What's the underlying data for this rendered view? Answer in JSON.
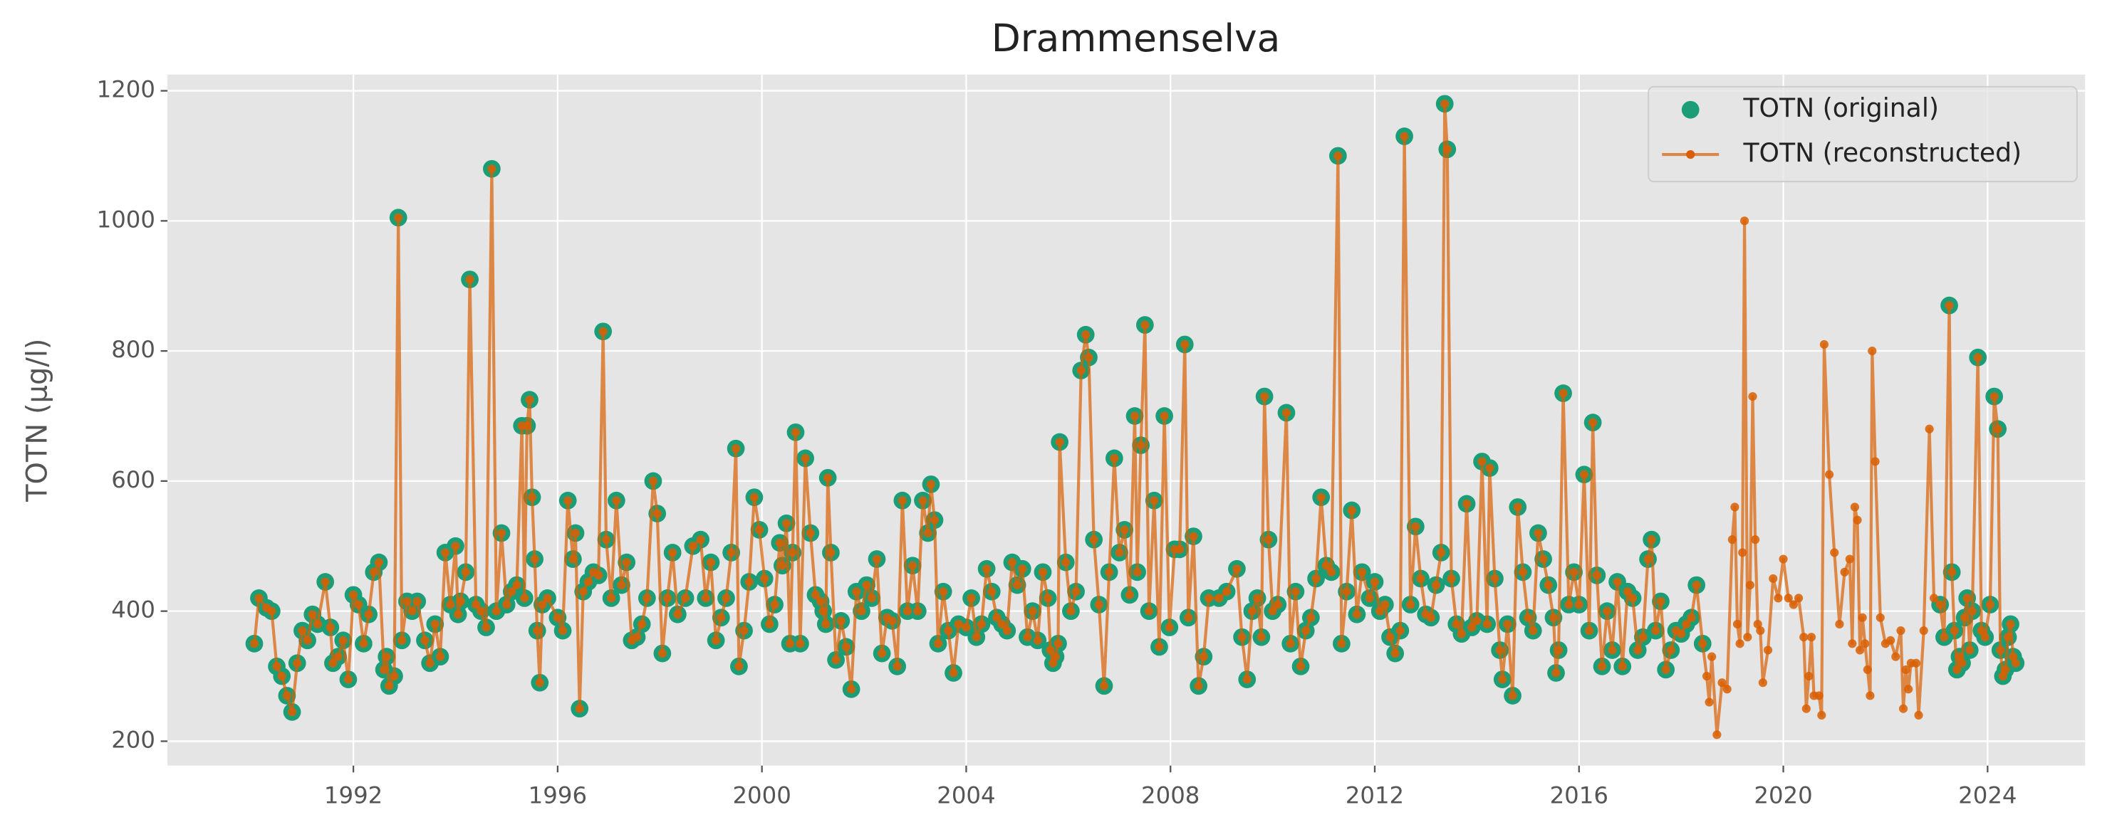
{
  "chart_data": {
    "type": "line",
    "title": "Drammenselva",
    "ylabel": "TOTN (µg/l)",
    "xlim": [
      1988.36,
      2025.91
    ],
    "xticks": [
      1992,
      1996,
      2000,
      2004,
      2008,
      2012,
      2016,
      2020,
      2024
    ],
    "ylim": [
      162.5,
      1225
    ],
    "yticks": [
      200,
      400,
      600,
      800,
      1000,
      1200
    ],
    "grid": true,
    "legend": "upper right",
    "x": [
      1990.06,
      1990.15,
      1990.3,
      1990.4,
      1990.5,
      1990.6,
      1990.7,
      1990.8,
      1990.9,
      1991.0,
      1991.1,
      1991.2,
      1991.3,
      1991.45,
      1991.55,
      1991.6,
      1991.7,
      1991.8,
      1991.9,
      1992.0,
      1992.1,
      1992.2,
      1992.3,
      1992.4,
      1992.5,
      1992.6,
      1992.65,
      1992.7,
      1992.8,
      1992.88,
      1992.95,
      1993.05,
      1993.15,
      1993.25,
      1993.4,
      1993.5,
      1993.6,
      1993.7,
      1993.8,
      1993.9,
      1994.0,
      1994.05,
      1994.1,
      1994.2,
      1994.28,
      1994.4,
      1994.5,
      1994.6,
      1994.71,
      1994.8,
      1994.9,
      1995.0,
      1995.1,
      1995.2,
      1995.3,
      1995.35,
      1995.4,
      1995.45,
      1995.5,
      1995.55,
      1995.6,
      1995.65,
      1995.7,
      1995.8,
      1996.0,
      1996.1,
      1996.2,
      1996.3,
      1996.35,
      1996.43,
      1996.5,
      1996.6,
      1996.7,
      1996.8,
      1996.89,
      1996.95,
      1997.05,
      1997.15,
      1997.25,
      1997.35,
      1997.45,
      1997.55,
      1997.65,
      1997.75,
      1997.87,
      1997.95,
      1998.05,
      1998.15,
      1998.25,
      1998.35,
      1998.5,
      1998.65,
      1998.8,
      1998.9,
      1999.0,
      1999.1,
      1999.2,
      1999.3,
      1999.4,
      1999.49,
      1999.55,
      1999.65,
      1999.75,
      1999.85,
      1999.95,
      2000.05,
      2000.15,
      2000.25,
      2000.35,
      2000.4,
      2000.48,
      2000.55,
      2000.6,
      2000.66,
      2000.75,
      2000.85,
      2000.95,
      2001.05,
      2001.15,
      2001.2,
      2001.25,
      2001.29,
      2001.35,
      2001.45,
      2001.55,
      2001.65,
      2001.75,
      2001.85,
      2001.95,
      2002.05,
      2002.15,
      2002.25,
      2002.35,
      2002.45,
      2002.55,
      2002.65,
      2002.75,
      2002.85,
      2002.95,
      2003.05,
      2003.15,
      2003.25,
      2003.31,
      2003.38,
      2003.45,
      2003.55,
      2003.65,
      2003.75,
      2003.85,
      2004.0,
      2004.1,
      2004.2,
      2004.3,
      2004.4,
      2004.5,
      2004.6,
      2004.7,
      2004.8,
      2004.9,
      2005.0,
      2005.1,
      2005.2,
      2005.3,
      2005.4,
      2005.5,
      2005.6,
      2005.65,
      2005.7,
      2005.75,
      2005.8,
      2005.83,
      2005.95,
      2006.05,
      2006.15,
      2006.25,
      2006.34,
      2006.4,
      2006.5,
      2006.6,
      2006.7,
      2006.8,
      2006.9,
      2007.0,
      2007.1,
      2007.2,
      2007.3,
      2007.35,
      2007.42,
      2007.5,
      2007.58,
      2007.68,
      2007.78,
      2007.88,
      2007.98,
      2008.08,
      2008.18,
      2008.28,
      2008.35,
      2008.45,
      2008.55,
      2008.65,
      2008.75,
      2008.95,
      2009.1,
      2009.3,
      2009.4,
      2009.5,
      2009.6,
      2009.7,
      2009.78,
      2009.84,
      2009.92,
      2010.0,
      2010.1,
      2010.27,
      2010.35,
      2010.45,
      2010.55,
      2010.65,
      2010.75,
      2010.85,
      2010.95,
      2011.05,
      2011.15,
      2011.28,
      2011.35,
      2011.45,
      2011.55,
      2011.65,
      2011.75,
      2011.9,
      2012.0,
      2012.1,
      2012.2,
      2012.3,
      2012.4,
      2012.5,
      2012.58,
      2012.7,
      2012.8,
      2012.9,
      2013.0,
      2013.1,
      2013.2,
      2013.3,
      2013.37,
      2013.42,
      2013.5,
      2013.6,
      2013.7,
      2013.8,
      2013.9,
      2014.0,
      2014.1,
      2014.2,
      2014.25,
      2014.35,
      2014.45,
      2014.5,
      2014.6,
      2014.7,
      2014.8,
      2014.9,
      2015.0,
      2015.1,
      2015.2,
      2015.3,
      2015.4,
      2015.5,
      2015.55,
      2015.6,
      2015.69,
      2015.8,
      2015.9,
      2016.0,
      2016.1,
      2016.2,
      2016.27,
      2016.35,
      2016.45,
      2016.55,
      2016.65,
      2016.75,
      2016.85,
      2016.95,
      2017.05,
      2017.15,
      2017.25,
      2017.35,
      2017.42,
      2017.5,
      2017.6,
      2017.7,
      2017.8,
      2017.9,
      2018.0,
      2018.1,
      2018.2,
      2018.3,
      2018.42,
      2018.5,
      2018.55,
      2018.6,
      2018.7,
      2018.8,
      2018.9,
      2019.0,
      2019.05,
      2019.1,
      2019.15,
      2019.2,
      2019.24,
      2019.3,
      2019.35,
      2019.4,
      2019.45,
      2019.5,
      2019.55,
      2019.6,
      2019.7,
      2019.8,
      2019.9,
      2020.0,
      2020.1,
      2020.2,
      2020.3,
      2020.4,
      2020.45,
      2020.5,
      2020.55,
      2020.6,
      2020.7,
      2020.75,
      2020.8,
      2020.9,
      2021.0,
      2021.1,
      2021.2,
      2021.3,
      2021.35,
      2021.4,
      2021.45,
      2021.5,
      2021.55,
      2021.6,
      2021.65,
      2021.7,
      2021.74,
      2021.8,
      2021.9,
      2022.0,
      2022.1,
      2022.2,
      2022.3,
      2022.35,
      2022.4,
      2022.45,
      2022.5,
      2022.6,
      2022.65,
      2022.75,
      2022.86,
      2022.95,
      2023.07,
      2023.15,
      2023.25,
      2023.3,
      2023.35,
      2023.4,
      2023.45,
      2023.5,
      2023.55,
      2023.6,
      2023.65,
      2023.7,
      2023.81,
      2023.88,
      2023.95,
      2024.05,
      2024.13,
      2024.2,
      2024.25,
      2024.3,
      2024.35,
      2024.4,
      2024.45,
      2024.5,
      2024.55
    ],
    "series": [
      {
        "name": "TOTN (original)",
        "color": "#1b9e77",
        "linestyle": "none",
        "marker": "o",
        "markersize": 6.5,
        "values": [
          350,
          420,
          405,
          400,
          315,
          300,
          270,
          245,
          320,
          370,
          355,
          395,
          380,
          445,
          375,
          320,
          330,
          355,
          295,
          425,
          410,
          350,
          395,
          460,
          475,
          310,
          330,
          285,
          300,
          1005,
          355,
          415,
          400,
          415,
          355,
          320,
          380,
          330,
          490,
          410,
          500,
          395,
          415,
          460,
          910,
          410,
          400,
          375,
          1080,
          400,
          520,
          410,
          430,
          440,
          685,
          420,
          685,
          725,
          575,
          480,
          370,
          290,
          410,
          420,
          390,
          370,
          570,
          480,
          520,
          250,
          430,
          445,
          460,
          455,
          830,
          510,
          420,
          570,
          440,
          475,
          355,
          360,
          380,
          420,
          600,
          550,
          335,
          420,
          490,
          395,
          420,
          500,
          510,
          420,
          475,
          355,
          390,
          420,
          490,
          650,
          315,
          370,
          445,
          575,
          525,
          450,
          380,
          410,
          505,
          470,
          535,
          350,
          490,
          675,
          350,
          635,
          520,
          425,
          415,
          400,
          380,
          605,
          490,
          325,
          385,
          345,
          280,
          430,
          400,
          440,
          420,
          480,
          335,
          390,
          385,
          315,
          570,
          400,
          470,
          400,
          570,
          520,
          595,
          540,
          350,
          430,
          370,
          305,
          380,
          375,
          420,
          360,
          380,
          465,
          430,
          390,
          380,
          370,
          475,
          440,
          465,
          360,
          400,
          355,
          460,
          420,
          340,
          320,
          330,
          350,
          660,
          475,
          400,
          430,
          770,
          825,
          790,
          510,
          410,
          285,
          460,
          635,
          490,
          525,
          425,
          700,
          460,
          655,
          840,
          400,
          570,
          345,
          700,
          375,
          495,
          495,
          810,
          390,
          515,
          285,
          330,
          420,
          420,
          430,
          465,
          360,
          295,
          400,
          420,
          360,
          730,
          510,
          400,
          410,
          705,
          350,
          430,
          315,
          370,
          390,
          450,
          575,
          470,
          460,
          1100,
          350,
          430,
          555,
          395,
          460,
          420,
          445,
          400,
          410,
          360,
          335,
          370,
          1130,
          410,
          530,
          450,
          395,
          390,
          440,
          490,
          1180,
          1110,
          450,
          380,
          365,
          565,
          375,
          385,
          630,
          380,
          620,
          450,
          340,
          295,
          380,
          270,
          560,
          460,
          390,
          370,
          520,
          480,
          440,
          390,
          305,
          340,
          735,
          410,
          460,
          410,
          610,
          370,
          690,
          455,
          315,
          400,
          340,
          445,
          315,
          430,
          420,
          340,
          360,
          480,
          510,
          370,
          415,
          310,
          340,
          370,
          365,
          380,
          390,
          440,
          350,
          null,
          null,
          null,
          null,
          null,
          null,
          null,
          null,
          null,
          null,
          null,
          null,
          null,
          null,
          null,
          null,
          null,
          null,
          null,
          null,
          null,
          null,
          null,
          null,
          null,
          null,
          null,
          null,
          null,
          null,
          null,
          null,
          null,
          null,
          null,
          null,
          null,
          null,
          null,
          null,
          null,
          null,
          null,
          null,
          null,
          null,
          null,
          null,
          null,
          null,
          null,
          null,
          null,
          null,
          null,
          null,
          null,
          null,
          null,
          null,
          null,
          null,
          null,
          410,
          360,
          870,
          460,
          370,
          310,
          330,
          320,
          390,
          420,
          340,
          400,
          790,
          370,
          360,
          410,
          730,
          680,
          340,
          300,
          310,
          360,
          380,
          330,
          320
        ]
      },
      {
        "name": "TOTN (reconstructed)",
        "color": "#d95f02",
        "linestyle": "-",
        "marker": "o",
        "markersize": 3.2,
        "values": [
          350,
          420,
          405,
          400,
          315,
          300,
          270,
          245,
          320,
          370,
          355,
          395,
          380,
          445,
          375,
          320,
          330,
          355,
          295,
          425,
          410,
          350,
          395,
          460,
          475,
          310,
          330,
          285,
          300,
          1005,
          355,
          415,
          400,
          415,
          355,
          320,
          380,
          330,
          490,
          410,
          500,
          395,
          415,
          460,
          910,
          410,
          400,
          375,
          1080,
          400,
          520,
          410,
          430,
          440,
          685,
          420,
          685,
          725,
          575,
          480,
          370,
          290,
          410,
          420,
          390,
          370,
          570,
          480,
          520,
          250,
          430,
          445,
          460,
          455,
          830,
          510,
          420,
          570,
          440,
          475,
          355,
          360,
          380,
          420,
          600,
          550,
          335,
          420,
          490,
          395,
          420,
          500,
          510,
          420,
          475,
          355,
          390,
          420,
          490,
          650,
          315,
          370,
          445,
          575,
          525,
          450,
          380,
          410,
          505,
          470,
          535,
          350,
          490,
          675,
          350,
          635,
          520,
          425,
          415,
          400,
          380,
          605,
          490,
          325,
          385,
          345,
          280,
          430,
          400,
          440,
          420,
          480,
          335,
          390,
          385,
          315,
          570,
          400,
          470,
          400,
          570,
          520,
          595,
          540,
          350,
          430,
          370,
          305,
          380,
          375,
          420,
          360,
          380,
          465,
          430,
          390,
          380,
          370,
          475,
          440,
          465,
          360,
          400,
          355,
          460,
          420,
          340,
          320,
          330,
          350,
          660,
          475,
          400,
          430,
          770,
          825,
          790,
          510,
          410,
          285,
          460,
          635,
          490,
          525,
          425,
          700,
          460,
          655,
          840,
          400,
          570,
          345,
          700,
          375,
          495,
          495,
          810,
          390,
          515,
          285,
          330,
          420,
          420,
          430,
          465,
          360,
          295,
          400,
          420,
          360,
          730,
          510,
          400,
          410,
          705,
          350,
          430,
          315,
          370,
          390,
          450,
          575,
          470,
          460,
          1100,
          350,
          430,
          555,
          395,
          460,
          420,
          445,
          400,
          410,
          360,
          335,
          370,
          1130,
          410,
          530,
          450,
          395,
          390,
          440,
          490,
          1180,
          1110,
          450,
          380,
          365,
          565,
          375,
          385,
          630,
          380,
          620,
          450,
          340,
          295,
          380,
          270,
          560,
          460,
          390,
          370,
          520,
          480,
          440,
          390,
          305,
          340,
          735,
          410,
          460,
          410,
          610,
          370,
          690,
          455,
          315,
          400,
          340,
          445,
          315,
          430,
          420,
          340,
          360,
          480,
          510,
          370,
          415,
          310,
          340,
          370,
          365,
          380,
          390,
          440,
          350,
          300,
          260,
          330,
          210,
          290,
          280,
          510,
          560,
          380,
          350,
          490,
          1000,
          360,
          440,
          730,
          510,
          380,
          370,
          290,
          340,
          450,
          420,
          480,
          420,
          410,
          420,
          360,
          250,
          300,
          360,
          270,
          270,
          240,
          810,
          610,
          490,
          380,
          460,
          480,
          350,
          560,
          540,
          340,
          390,
          350,
          310,
          270,
          800,
          630,
          390,
          350,
          355,
          330,
          370,
          250,
          310,
          280,
          320,
          320,
          240,
          370,
          680,
          420,
          410,
          360,
          870,
          460,
          370,
          310,
          330,
          320,
          390,
          420,
          340,
          400,
          790,
          370,
          360,
          410,
          730,
          680,
          340,
          300,
          310,
          360,
          380,
          330,
          320
        ]
      }
    ]
  }
}
